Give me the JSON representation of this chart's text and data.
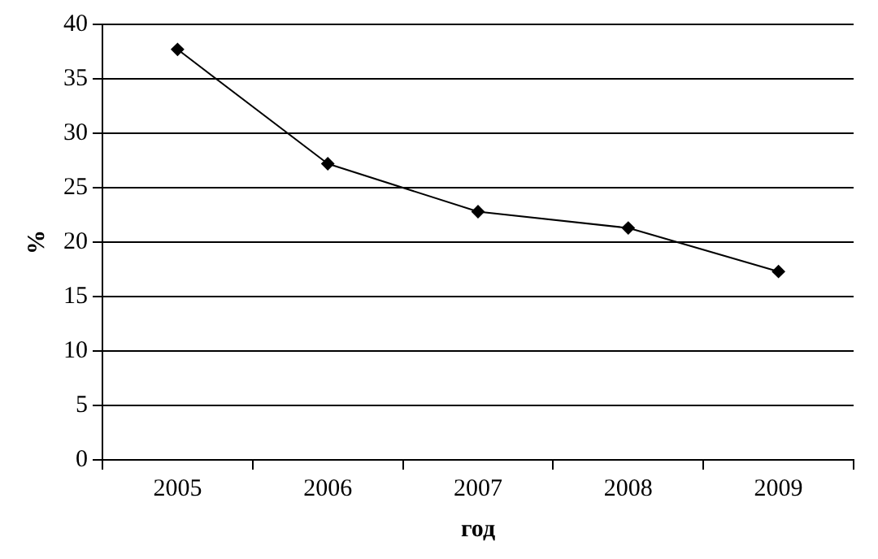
{
  "chart_data": {
    "type": "line",
    "xlabel": "год",
    "ylabel": "%",
    "categories": [
      "2005",
      "2006",
      "2007",
      "2008",
      "2009"
    ],
    "series": [
      {
        "color": "#000000",
        "values": [
          37.7,
          27.2,
          22.8,
          21.3,
          17.3
        ]
      }
    ],
    "ylim": [
      0,
      40
    ],
    "yticks": [
      0,
      5,
      10,
      15,
      20,
      25,
      30,
      35,
      40
    ],
    "grid": "y",
    "legend": false,
    "marker": "diamond",
    "line_style": "solid"
  }
}
